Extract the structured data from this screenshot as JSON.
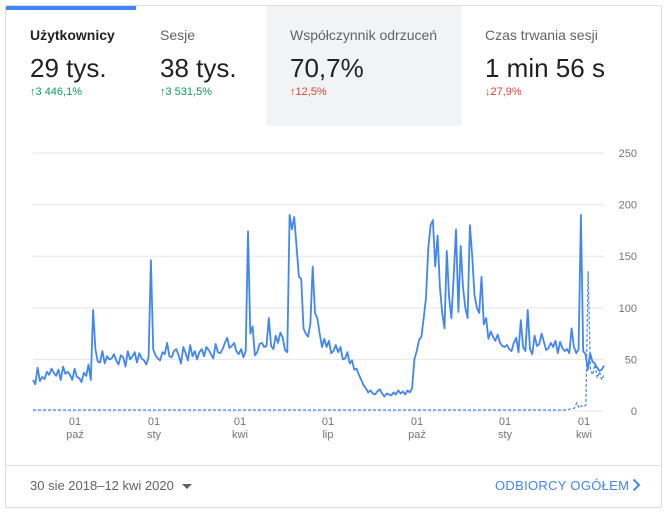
{
  "tabs": [
    {
      "label": "Użytkownicy",
      "value": "29 tys.",
      "change_arrow": "↑",
      "change": "3 446,1%",
      "trend": "good"
    },
    {
      "label": "Sesje",
      "value": "38 tys.",
      "change_arrow": "↑",
      "change": "3 531,5%",
      "trend": "good"
    },
    {
      "label": "Współczynnik odrzuceń",
      "value": "70,7%",
      "change_arrow": "↑",
      "change": "12,5%",
      "trend": "bad"
    },
    {
      "label": "Czas trwania sesji",
      "value": "1 min 56 s",
      "change_arrow": "↓",
      "change": "27,9%",
      "trend": "bad"
    }
  ],
  "colors": {
    "accent": "#4285f4",
    "good": "#0f9d58",
    "bad": "#db4437"
  },
  "chart_data": {
    "type": "line",
    "yticks": [
      "250",
      "200",
      "150",
      "100",
      "50",
      "0"
    ],
    "ylim": [
      0,
      250
    ],
    "xticks": [
      {
        "day": "01",
        "month": "paź"
      },
      {
        "day": "01",
        "month": "sty"
      },
      {
        "day": "01",
        "month": "kwi"
      },
      {
        "day": "01",
        "month": "lip"
      },
      {
        "day": "01",
        "month": "paź"
      },
      {
        "day": "01",
        "month": "sty"
      },
      {
        "day": "01",
        "month": "kwi"
      }
    ],
    "x_range": [
      "2018-08-30",
      "2020-04-12"
    ],
    "series": [
      {
        "style": "solid",
        "values": [
          30,
          26,
          42,
          29,
          33,
          31,
          38,
          35,
          41,
          37,
          34,
          40,
          30,
          43,
          36,
          38,
          35,
          30,
          41,
          33,
          32,
          28,
          37,
          34,
          45,
          30,
          98,
          60,
          48,
          47,
          58,
          46,
          53,
          50,
          51,
          55,
          49,
          45,
          54,
          52,
          43,
          58,
          50,
          53,
          57,
          47,
          56,
          51,
          49,
          45,
          52,
          146,
          60,
          54,
          51,
          49,
          57,
          55,
          66,
          53,
          52,
          58,
          60,
          54,
          46,
          62,
          56,
          49,
          64,
          53,
          58,
          50,
          57,
          60,
          53,
          62,
          59,
          55,
          51,
          65,
          57,
          56,
          60,
          66,
          71,
          61,
          63,
          66,
          58,
          55,
          60,
          52,
          58,
          174,
          75,
          82,
          54,
          57,
          65,
          66,
          62,
          63,
          90,
          63,
          60,
          73,
          66,
          76,
          71,
          59,
          57,
          190,
          176,
          188,
          160,
          130,
          128,
          80,
          75,
          72,
          85,
          140,
          95,
          90,
          75,
          62,
          70,
          62,
          68,
          56,
          58,
          64,
          57,
          62,
          50,
          51,
          57,
          46,
          49,
          40,
          41,
          35,
          30,
          25,
          22,
          18,
          20,
          17,
          16,
          19,
          21,
          17,
          14,
          17,
          16,
          15,
          18,
          16,
          20,
          17,
          19,
          16,
          20,
          18,
          22,
          50,
          58,
          69,
          72,
          90,
          110,
          158,
          180,
          185,
          140,
          170,
          120,
          95,
          80,
          155,
          110,
          90,
          130,
          176,
          96,
          160,
          120,
          100,
          90,
          180,
          150,
          112,
          100,
          95,
          130,
          84,
          90,
          70,
          77,
          72,
          68,
          74,
          66,
          63,
          62,
          64,
          60,
          58,
          66,
          71,
          57,
          88,
          62,
          58,
          98,
          60,
          55,
          73,
          63,
          65,
          75,
          67,
          59,
          61,
          66,
          62,
          68,
          56,
          67,
          61,
          58,
          60,
          56,
          80,
          62,
          56,
          60,
          190,
          58,
          55,
          40,
          56,
          48,
          46,
          42,
          39,
          40,
          44
        ]
      },
      {
        "style": "dashed",
        "values": [
          1,
          1,
          1,
          1,
          1,
          1,
          1,
          1,
          1,
          1,
          1,
          1,
          1,
          1,
          1,
          1,
          1,
          1,
          1,
          1,
          1,
          1,
          1,
          1,
          1,
          1,
          1,
          1,
          1,
          1,
          1,
          1,
          1,
          1,
          1,
          1,
          1,
          1,
          1,
          1,
          1,
          1,
          1,
          1,
          1,
          1,
          1,
          1,
          1,
          1,
          1,
          1,
          1,
          1,
          1,
          1,
          1,
          1,
          1,
          1,
          1,
          1,
          1,
          1,
          1,
          1,
          1,
          1,
          1,
          1,
          1,
          1,
          1,
          1,
          1,
          1,
          1,
          1,
          1,
          1,
          1,
          1,
          1,
          1,
          1,
          1,
          1,
          1,
          1,
          1,
          1,
          1,
          1,
          1,
          1,
          1,
          1,
          1,
          1,
          1,
          1,
          1,
          1,
          1,
          1,
          1,
          1,
          1,
          1,
          1,
          1,
          1,
          1,
          1,
          1,
          1,
          1,
          1,
          1,
          1,
          1,
          1,
          1,
          1,
          1,
          1,
          1,
          1,
          1,
          1,
          1,
          1,
          1,
          1,
          1,
          1,
          1,
          1,
          1,
          1,
          1,
          1,
          1,
          1,
          1,
          1,
          1,
          1,
          1,
          1,
          1,
          1,
          1,
          1,
          1,
          1,
          1,
          1,
          1,
          1,
          1,
          1,
          1,
          1,
          1,
          1,
          1,
          1,
          1,
          1,
          1,
          1,
          1,
          1,
          1,
          1,
          1,
          1,
          1,
          1,
          1,
          1,
          1,
          1,
          1,
          1,
          1,
          1,
          1,
          1,
          1,
          1,
          1,
          1,
          1,
          1,
          1,
          1,
          1,
          1,
          1,
          1,
          1,
          1,
          1,
          1,
          1,
          1,
          1,
          1,
          1,
          1,
          1,
          1,
          1,
          1,
          1,
          1,
          1,
          1,
          1,
          1,
          1,
          1,
          1,
          1,
          1,
          1,
          1,
          1,
          1,
          1,
          1,
          1,
          1,
          1,
          1,
          2,
          2,
          3,
          8,
          3,
          5,
          4,
          6,
          135,
          40,
          35,
          45,
          32,
          38,
          30,
          35
        ]
      }
    ]
  },
  "footer": {
    "date_range": "30 sie 2018–12 kwi 2020",
    "link_label": "ODBIORCY OGÓŁEM"
  }
}
